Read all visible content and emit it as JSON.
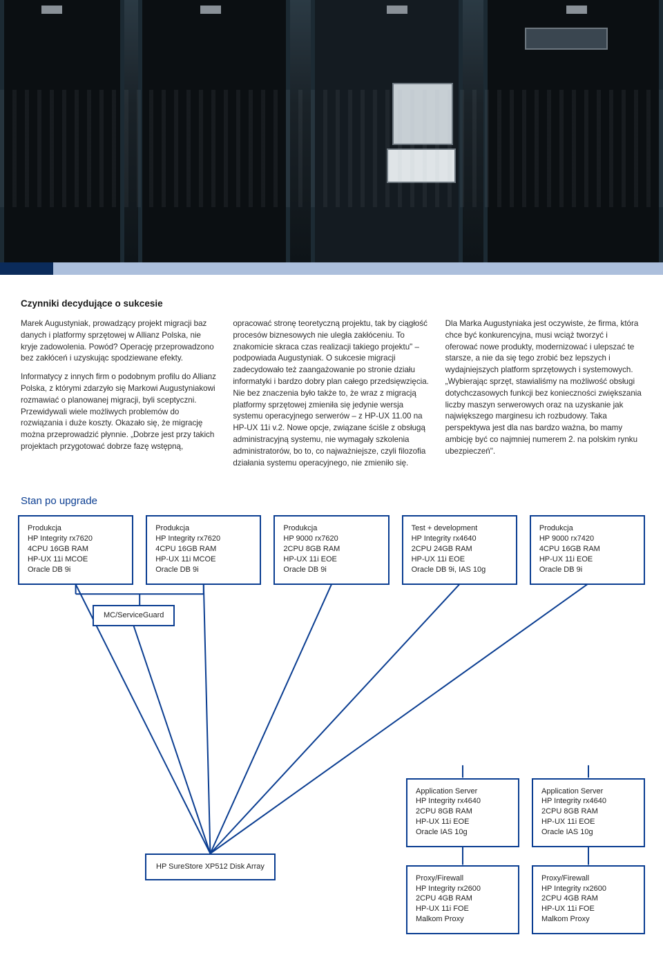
{
  "colors": {
    "brand_blue": "#0a3d91",
    "text": "#222222",
    "box_border": "#0a3d91",
    "line": "#0a3d91",
    "bg": "#ffffff"
  },
  "article": {
    "title": "Czynniki decydujące o sukcesie",
    "col1_p1": "Marek Augustyniak, prowadzący projekt migracji baz danych i platformy sprzętowej w Allianz Polska, nie kryje zadowolenia. Powód? Operację przeprowadzono bez zakłóceń i uzyskując spodziewane efekty.",
    "col1_p2": "Informatycy z innych firm o podobnym profilu do Allianz Polska, z którymi zdarzyło się Markowi Augustyniakowi rozmawiać o planowanej migracji, byli sceptyczni. Przewidywali wiele możliwych problemów do rozwiązania i duże koszty. Okazało się, że migrację można przeprowadzić płynnie. „Dobrze jest przy takich projektach przygotować dobrze fazę wstępną,",
    "col2_p1": "opracować stronę teoretyczną projektu, tak by ciągłość procesów biznesowych nie uległa zakłóceniu. To znakomicie skraca czas realizacji takiego projektu\" – podpowiada Augustyniak. O sukcesie migracji zadecydowało też zaangażowanie po stronie działu informatyki i bardzo dobry plan całego przedsięwzięcia. Nie bez znaczenia było także to, że wraz z migracją platformy sprzętowej zmieniła się jedynie wersja systemu operacyjnego serwerów – z HP-UX 11.00 na HP-UX 11i v.2. Nowe opcje, związane ściśle z obsługą administracyjną systemu, nie wymagały szkolenia administratorów, bo to, co najważniejsze, czyli filozofia działania systemu operacyjnego, nie zmieniło się.",
    "col3_p1": "Dla Marka Augustyniaka jest oczywiste, że firma, która chce być konkurencyjna, musi wciąż tworzyć i oferować nowe produkty, modernizować i ulepszać te starsze, a nie da się tego zrobić bez lepszych i wydajniejszych platform sprzętowych i systemowych. „Wybierając sprzęt, stawialiśmy na możliwość obsługi dotychczasowych funkcji bez konieczności zwiększania liczby maszyn serwerowych oraz na uzyskanie jak największego marginesu ich rozbudowy. Taka perspektywa jest dla nas bardzo ważna, bo mamy ambicję być co najmniej numerem 2. na polskim rynku ubezpieczeń\"."
  },
  "diagram": {
    "title": "Stan po upgrade",
    "mc_label": "MC/ServiceGuard",
    "disk_label": "HP SureStore XP512 Disk Array",
    "line_color": "#0a3d91",
    "line_width": 2,
    "top_boxes": [
      {
        "lines": [
          "Produkcja",
          "HP Integrity rx7620",
          "4CPU 16GB RAM",
          "HP-UX 11i MCOE",
          "Oracle DB 9i"
        ]
      },
      {
        "lines": [
          "Produkcja",
          "HP Integrity rx7620",
          "4CPU 16GB RAM",
          "HP-UX 11i MCOE",
          "Oracle DB 9i"
        ]
      },
      {
        "lines": [
          "Produkcja",
          "HP 9000 rx7620",
          "2CPU 8GB RAM",
          "HP-UX 11i EOE",
          "Oracle DB 9i"
        ]
      },
      {
        "lines": [
          "Test + development",
          "HP Integrity rx4640",
          "2CPU 24GB RAM",
          "HP-UX 11i EOE",
          "Oracle DB 9i, IAS 10g"
        ]
      },
      {
        "lines": [
          "Produkcja",
          "HP 9000 rx7420",
          "4CPU 16GB RAM",
          "HP-UX 11i EOE",
          "Oracle DB 9i"
        ]
      }
    ],
    "mid_boxes": [
      {
        "lines": [
          "Application Server",
          "HP Integrity rx4640",
          "2CPU 8GB RAM",
          "HP-UX 11i EOE",
          "Oracle IAS 10g"
        ]
      },
      {
        "lines": [
          "Application Server",
          "HP Integrity rx4640",
          "2CPU 8GB RAM",
          "HP-UX 11i EOE",
          "Oracle IAS 10g"
        ]
      }
    ],
    "bot_boxes": [
      {
        "lines": [
          "Proxy/Firewall",
          "HP Integrity rx2600",
          "2CPU 4GB RAM",
          "HP-UX 11i FOE",
          "Malkom Proxy"
        ]
      },
      {
        "lines": [
          "Proxy/Firewall",
          "HP Integrity rx2600",
          "2CPU 4GB RAM",
          "HP-UX 11i FOE",
          "Malkom Proxy"
        ]
      }
    ]
  }
}
